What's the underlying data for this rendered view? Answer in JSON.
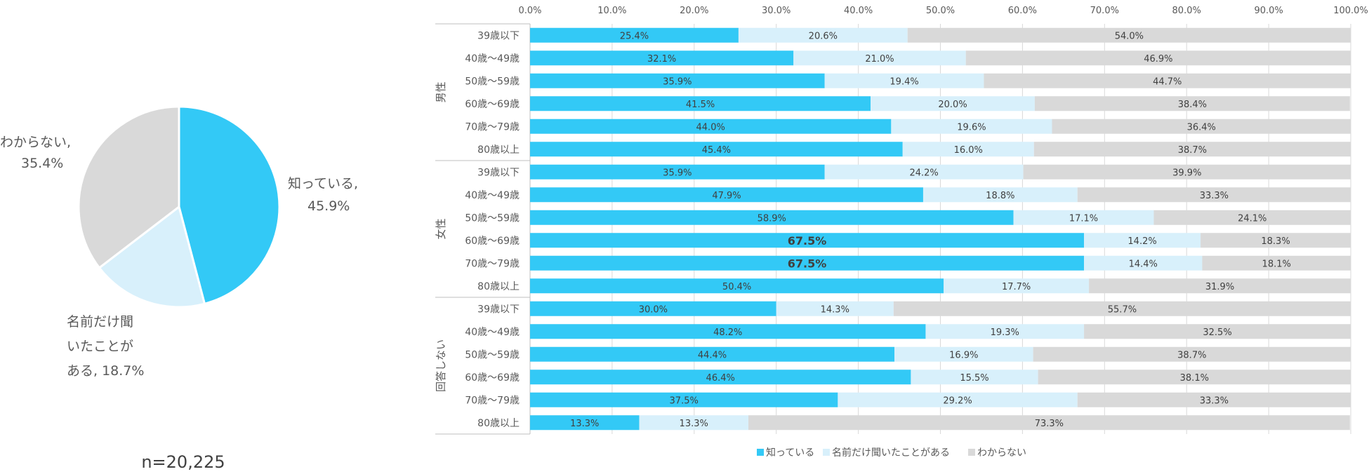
{
  "chart_data": [
    {
      "type": "pie",
      "n_label": "n=20,225",
      "slices": [
        {
          "name": "知っている",
          "value": 45.9,
          "label_lines": [
            "知っている,",
            "45.9%"
          ],
          "color": "#33c9f6"
        },
        {
          "name": "名前だけ聞いたことがある",
          "value": 18.7,
          "label_lines": [
            "名前だけ聞",
            "いたことが",
            "ある, 18.7%"
          ],
          "color": "#d8f0fb"
        },
        {
          "name": "わからない",
          "value": 35.4,
          "label_lines": [
            "わからない,",
            "35.4%"
          ],
          "color": "#d9d9d9"
        }
      ]
    },
    {
      "type": "bar",
      "orientation": "horizontal",
      "stacked": true,
      "xlim": [
        0,
        100
      ],
      "ticks": [
        "0.0%",
        "10.0%",
        "20.0%",
        "30.0%",
        "40.0%",
        "50.0%",
        "60.0%",
        "70.0%",
        "80.0%",
        "90.0%",
        "100.0%"
      ],
      "series": [
        {
          "name": "知っている",
          "color": "#33c9f6"
        },
        {
          "name": "名前だけ聞いたことがある",
          "color": "#d8f0fb"
        },
        {
          "name": "わからない",
          "color": "#d9d9d9"
        }
      ],
      "groups": [
        {
          "name": "男性",
          "rows": [
            {
              "label": "39歳以下",
              "values": [
                25.4,
                20.6,
                54.0
              ]
            },
            {
              "label": "40歳～49歳",
              "values": [
                32.1,
                21.0,
                46.9
              ]
            },
            {
              "label": "50歳～59歳",
              "values": [
                35.9,
                19.4,
                44.7
              ]
            },
            {
              "label": "60歳～69歳",
              "values": [
                41.5,
                20.0,
                38.4
              ]
            },
            {
              "label": "70歳～79歳",
              "values": [
                44.0,
                19.6,
                36.4
              ]
            },
            {
              "label": "80歳以上",
              "values": [
                45.4,
                16.0,
                38.7
              ]
            }
          ]
        },
        {
          "name": "女性",
          "rows": [
            {
              "label": "39歳以下",
              "values": [
                35.9,
                24.2,
                39.9
              ]
            },
            {
              "label": "40歳～49歳",
              "values": [
                47.9,
                18.8,
                33.3
              ]
            },
            {
              "label": "50歳～59歳",
              "values": [
                58.9,
                17.1,
                24.1
              ]
            },
            {
              "label": "60歳～69歳",
              "values": [
                67.5,
                14.2,
                18.3
              ],
              "emphasis": true
            },
            {
              "label": "70歳～79歳",
              "values": [
                67.5,
                14.4,
                18.1
              ],
              "emphasis": true
            },
            {
              "label": "80歳以上",
              "values": [
                50.4,
                17.7,
                31.9
              ]
            }
          ]
        },
        {
          "name": "回答しない",
          "rows": [
            {
              "label": "39歳以下",
              "values": [
                30.0,
                14.3,
                55.7
              ]
            },
            {
              "label": "40歳～49歳",
              "values": [
                48.2,
                19.3,
                32.5
              ]
            },
            {
              "label": "50歳～59歳",
              "values": [
                44.4,
                16.9,
                38.7
              ]
            },
            {
              "label": "60歳～69歳",
              "values": [
                46.4,
                15.5,
                38.1
              ]
            },
            {
              "label": "70歳～79歳",
              "values": [
                37.5,
                29.2,
                33.3
              ]
            },
            {
              "label": "80歳以上",
              "values": [
                13.3,
                13.3,
                73.3
              ]
            }
          ]
        }
      ]
    }
  ]
}
